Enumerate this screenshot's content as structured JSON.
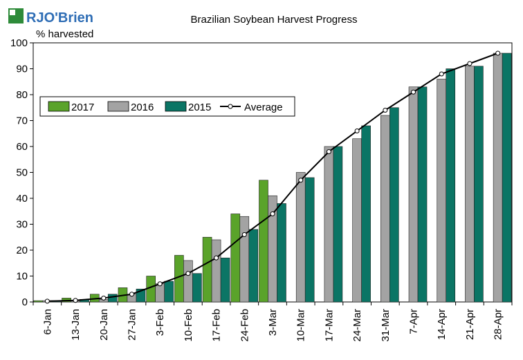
{
  "brand": {
    "logo_text": "RJO'Brien",
    "logo_mark_color": "#2e8b3a"
  },
  "chart_data": {
    "type": "bar",
    "title": "Brazilian Soybean Harvest Progress",
    "ylabel": "% harvested",
    "xlabel": "",
    "ylim": [
      0,
      100
    ],
    "yticks": [
      0,
      10,
      20,
      30,
      40,
      50,
      60,
      70,
      80,
      90,
      100
    ],
    "categories": [
      "6-Jan",
      "13-Jan",
      "20-Jan",
      "27-Jan",
      "3-Feb",
      "10-Feb",
      "17-Feb",
      "24-Feb",
      "3-Mar",
      "10-Mar",
      "17-Mar",
      "24-Mar",
      "31-Mar",
      "7-Apr",
      "14-Apr",
      "21-Apr",
      "28-Apr"
    ],
    "series": [
      {
        "name": "2017",
        "kind": "bar",
        "color": "#5aa32a",
        "values": [
          0.5,
          1.5,
          3,
          5.5,
          10,
          18,
          25,
          34,
          47,
          null,
          null,
          null,
          null,
          null,
          null,
          null,
          null
        ]
      },
      {
        "name": "2016",
        "kind": "bar",
        "color": "#a3a3a3",
        "values": [
          0.5,
          0.5,
          1,
          3,
          7,
          16,
          24,
          33,
          41,
          50,
          60,
          63,
          72,
          83,
          86,
          91,
          96
        ]
      },
      {
        "name": "2015",
        "kind": "bar",
        "color": "#0b7565",
        "values": [
          0.5,
          1,
          3,
          5,
          8,
          11,
          17,
          28,
          38,
          48,
          60,
          68,
          75,
          83,
          90,
          91,
          96
        ]
      },
      {
        "name": "Average",
        "kind": "line",
        "color": "#000000",
        "values": [
          0.3,
          0.6,
          1.5,
          3,
          7,
          11,
          17,
          26,
          34,
          47,
          58,
          66,
          74,
          81,
          88,
          92,
          96
        ]
      }
    ],
    "grid": false,
    "legend_position": "upper-left"
  }
}
